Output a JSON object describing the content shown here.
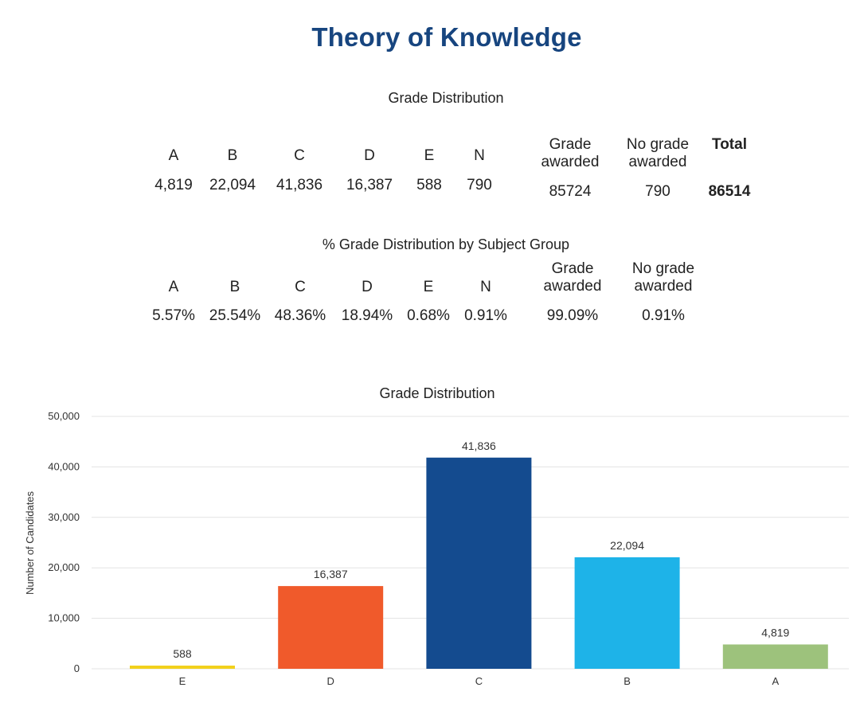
{
  "title": "Theory of Knowledge",
  "counts_table": {
    "caption": "Grade Distribution",
    "grades": [
      "A",
      "B",
      "C",
      "D",
      "E",
      "N"
    ],
    "values": [
      "4,819",
      "22,094",
      "41,836",
      "16,387",
      "588",
      "790"
    ],
    "grade_awarded_label": "Grade awarded",
    "no_grade_awarded_label": "No grade awarded",
    "total_label": "Total",
    "grade_awarded_value": "85724",
    "no_grade_awarded_value": "790",
    "total_value": "86514"
  },
  "percent_table": {
    "caption": "% Grade Distribution by Subject Group",
    "grades": [
      "A",
      "B",
      "C",
      "D",
      "E",
      "N"
    ],
    "values": [
      "5.57%",
      "25.54%",
      "48.36%",
      "18.94%",
      "0.68%",
      "0.91%"
    ],
    "grade_awarded_label": "Grade awarded",
    "no_grade_awarded_label": "No grade awarded",
    "grade_awarded_value": "99.09%",
    "no_grade_awarded_value": "0.91%"
  },
  "chart_data": {
    "type": "bar",
    "title": "Grade Distribution",
    "xlabel": "",
    "ylabel": "Number of Candidates",
    "categories": [
      "E",
      "D",
      "C",
      "B",
      "A"
    ],
    "values": [
      588,
      16387,
      41836,
      22094,
      4819
    ],
    "value_labels": [
      "588",
      "16,387",
      "41,836",
      "22,094",
      "4,819"
    ],
    "colors": [
      "#f2d11c",
      "#f05a2b",
      "#144b8f",
      "#1eb3e8",
      "#9dc27c"
    ],
    "ylim": [
      0,
      50000
    ],
    "yticks": [
      0,
      10000,
      20000,
      30000,
      40000,
      50000
    ],
    "ytick_labels": [
      "0",
      "10,000",
      "20,000",
      "30,000",
      "40,000",
      "50,000"
    ],
    "grid": true,
    "legend": false
  }
}
